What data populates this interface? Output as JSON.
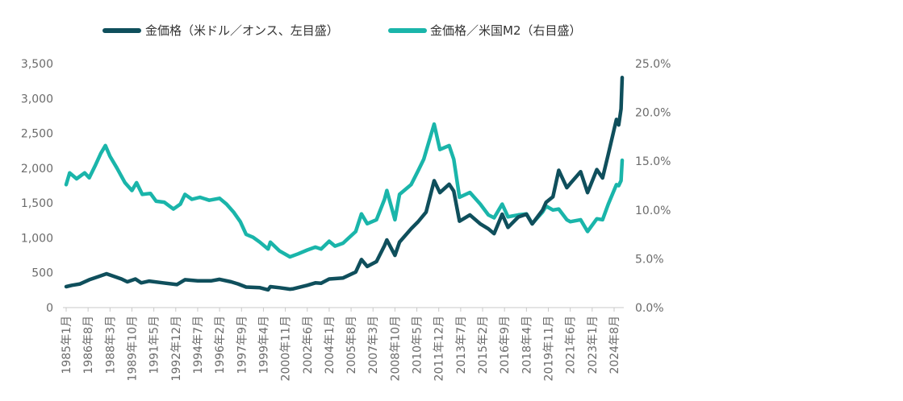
{
  "chart_data": {
    "type": "line",
    "title": "",
    "xlabel": "",
    "ylabel_left": "",
    "ylabel_right": "",
    "left_axis": {
      "ylim": [
        0,
        3500
      ],
      "ticks": [
        0,
        500,
        1000,
        1500,
        2000,
        2500,
        3000,
        3500
      ],
      "tick_labels": [
        "0",
        "500",
        "1,000",
        "1,500",
        "2,000",
        "2,500",
        "3,000",
        "3,500"
      ]
    },
    "right_axis": {
      "ylim": [
        0,
        25
      ],
      "ticks": [
        0,
        5,
        10,
        15,
        20,
        25
      ],
      "tick_labels": [
        "0.0%",
        "5.0%",
        "10.0%",
        "15.0%",
        "20.0%",
        "25.0%"
      ]
    },
    "x_tick_labels": [
      "1985年1月",
      "1986年8月",
      "1988年3月",
      "1989年10月",
      "1991年5月",
      "1992年12月",
      "1994年7月",
      "1996年2月",
      "1997年9月",
      "1999年4月",
      "2000年11月",
      "2002年6月",
      "2004年1月",
      "2005年8月",
      "2007年3月",
      "2008年10月",
      "2010年5月",
      "2011年12月",
      "2013年7月",
      "2015年2月",
      "2016年9月",
      "2018年4月",
      "2019年11月",
      "2021年6月",
      "2023年1月",
      "2024年8月"
    ],
    "x_range": [
      "1985-01",
      "2025-03"
    ],
    "legend_position": "top",
    "grid": false,
    "series": [
      {
        "name": "金価格（米ドル／オンス、左目盛）",
        "axis": "left",
        "color": "#0f4f5c",
        "points": [
          [
            "1985-01",
            300
          ],
          [
            "1985-06",
            320
          ],
          [
            "1986-01",
            340
          ],
          [
            "1986-09",
            400
          ],
          [
            "1987-06",
            450
          ],
          [
            "1987-12",
            485
          ],
          [
            "1988-06",
            450
          ],
          [
            "1989-01",
            410
          ],
          [
            "1989-06",
            370
          ],
          [
            "1990-01",
            410
          ],
          [
            "1990-06",
            355
          ],
          [
            "1991-01",
            380
          ],
          [
            "1992-01",
            355
          ],
          [
            "1993-01",
            330
          ],
          [
            "1993-08",
            400
          ],
          [
            "1994-07",
            385
          ],
          [
            "1995-07",
            385
          ],
          [
            "1996-02",
            405
          ],
          [
            "1996-12",
            370
          ],
          [
            "1997-06",
            340
          ],
          [
            "1998-01",
            295
          ],
          [
            "1999-01",
            285
          ],
          [
            "1999-08",
            255
          ],
          [
            "1999-10",
            300
          ],
          [
            "2000-06",
            285
          ],
          [
            "2001-03",
            265
          ],
          [
            "2001-06",
            270
          ],
          [
            "2002-06",
            320
          ],
          [
            "2003-01",
            355
          ],
          [
            "2003-06",
            350
          ],
          [
            "2004-01",
            410
          ],
          [
            "2005-01",
            425
          ],
          [
            "2005-12",
            510
          ],
          [
            "2006-05",
            690
          ],
          [
            "2006-10",
            590
          ],
          [
            "2007-06",
            660
          ],
          [
            "2008-01",
            890
          ],
          [
            "2008-03",
            970
          ],
          [
            "2008-10",
            750
          ],
          [
            "2009-02",
            940
          ],
          [
            "2009-12",
            1130
          ],
          [
            "2010-06",
            1230
          ],
          [
            "2011-01",
            1370
          ],
          [
            "2011-08",
            1820
          ],
          [
            "2012-01",
            1650
          ],
          [
            "2012-09",
            1770
          ],
          [
            "2013-01",
            1670
          ],
          [
            "2013-06",
            1240
          ],
          [
            "2014-03",
            1330
          ],
          [
            "2014-12",
            1200
          ],
          [
            "2015-07",
            1130
          ],
          [
            "2015-12",
            1060
          ],
          [
            "2016-07",
            1340
          ],
          [
            "2016-12",
            1150
          ],
          [
            "2017-09",
            1300
          ],
          [
            "2018-04",
            1340
          ],
          [
            "2018-09",
            1200
          ],
          [
            "2019-06",
            1400
          ],
          [
            "2019-09",
            1510
          ],
          [
            "2020-03",
            1590
          ],
          [
            "2020-08",
            1970
          ],
          [
            "2021-03",
            1720
          ],
          [
            "2021-06",
            1780
          ],
          [
            "2022-03",
            1950
          ],
          [
            "2022-09",
            1650
          ],
          [
            "2023-05",
            1980
          ],
          [
            "2023-10",
            1860
          ],
          [
            "2024-03",
            2200
          ],
          [
            "2024-10",
            2700
          ],
          [
            "2024-12",
            2620
          ],
          [
            "2025-02",
            2850
          ],
          [
            "2025-03",
            3300
          ]
        ]
      },
      {
        "name": "金価格／米国M2（右目盛）",
        "axis": "right",
        "color": "#1ab5aa",
        "points": [
          [
            "1985-01",
            12.6
          ],
          [
            "1985-04",
            13.8
          ],
          [
            "1985-10",
            13.2
          ],
          [
            "1986-05",
            13.8
          ],
          [
            "1986-09",
            13.3
          ],
          [
            "1987-02",
            14.5
          ],
          [
            "1987-07",
            15.8
          ],
          [
            "1987-11",
            16.6
          ],
          [
            "1988-03",
            15.5
          ],
          [
            "1988-09",
            14.3
          ],
          [
            "1989-04",
            12.8
          ],
          [
            "1989-10",
            12.0
          ],
          [
            "1990-02",
            12.8
          ],
          [
            "1990-07",
            11.6
          ],
          [
            "1991-02",
            11.7
          ],
          [
            "1991-07",
            10.9
          ],
          [
            "1992-02",
            10.8
          ],
          [
            "1992-10",
            10.1
          ],
          [
            "1993-04",
            10.6
          ],
          [
            "1993-08",
            11.6
          ],
          [
            "1994-02",
            11.1
          ],
          [
            "1994-09",
            11.3
          ],
          [
            "1995-05",
            11.0
          ],
          [
            "1996-02",
            11.2
          ],
          [
            "1996-08",
            10.6
          ],
          [
            "1997-02",
            9.8
          ],
          [
            "1997-08",
            8.8
          ],
          [
            "1998-01",
            7.5
          ],
          [
            "1998-07",
            7.2
          ],
          [
            "1999-01",
            6.7
          ],
          [
            "1999-08",
            6.0
          ],
          [
            "1999-10",
            6.7
          ],
          [
            "2000-06",
            5.8
          ],
          [
            "2001-03",
            5.2
          ],
          [
            "2001-10",
            5.5
          ],
          [
            "2002-06",
            5.9
          ],
          [
            "2003-01",
            6.2
          ],
          [
            "2003-06",
            6.0
          ],
          [
            "2004-01",
            6.8
          ],
          [
            "2004-06",
            6.3
          ],
          [
            "2005-01",
            6.6
          ],
          [
            "2005-12",
            7.8
          ],
          [
            "2006-05",
            9.6
          ],
          [
            "2006-10",
            8.6
          ],
          [
            "2007-06",
            9.0
          ],
          [
            "2008-01",
            11.1
          ],
          [
            "2008-03",
            12.0
          ],
          [
            "2008-10",
            9.0
          ],
          [
            "2009-02",
            11.6
          ],
          [
            "2009-12",
            12.6
          ],
          [
            "2010-06",
            14.0
          ],
          [
            "2010-11",
            15.2
          ],
          [
            "2011-08",
            18.8
          ],
          [
            "2012-01",
            16.2
          ],
          [
            "2012-09",
            16.6
          ],
          [
            "2013-01",
            15.2
          ],
          [
            "2013-06",
            11.3
          ],
          [
            "2014-03",
            11.8
          ],
          [
            "2014-12",
            10.6
          ],
          [
            "2015-07",
            9.5
          ],
          [
            "2015-12",
            9.2
          ],
          [
            "2016-07",
            10.6
          ],
          [
            "2016-12",
            9.3
          ],
          [
            "2017-09",
            9.5
          ],
          [
            "2018-04",
            9.6
          ],
          [
            "2018-09",
            8.6
          ],
          [
            "2019-06",
            9.8
          ],
          [
            "2019-09",
            10.4
          ],
          [
            "2020-03",
            10.0
          ],
          [
            "2020-08",
            10.1
          ],
          [
            "2021-03",
            9.0
          ],
          [
            "2021-06",
            8.8
          ],
          [
            "2022-03",
            9.0
          ],
          [
            "2022-09",
            7.8
          ],
          [
            "2023-05",
            9.1
          ],
          [
            "2023-10",
            9.0
          ],
          [
            "2024-03",
            10.6
          ],
          [
            "2024-10",
            12.6
          ],
          [
            "2024-12",
            12.5
          ],
          [
            "2025-02",
            13.0
          ],
          [
            "2025-03",
            15.1
          ]
        ]
      }
    ]
  }
}
